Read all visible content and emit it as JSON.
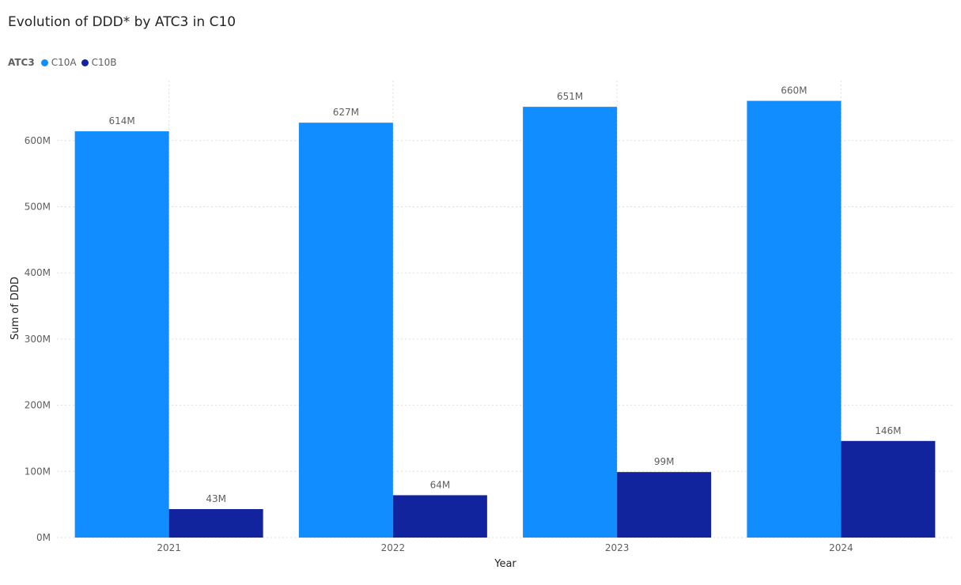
{
  "chart_data": {
    "type": "bar",
    "title": "Evolution of DDD* by ATC3 in C10",
    "legend_title": "ATC3",
    "legend_position": "top-left",
    "xlabel": "Year",
    "ylabel": "Sum of DDD",
    "categories": [
      "2021",
      "2022",
      "2023",
      "2024"
    ],
    "series": [
      {
        "name": "C10A",
        "color": "#118dff",
        "values": [
          614,
          627,
          651,
          660
        ],
        "labels": [
          "614M",
          "627M",
          "651M",
          "660M"
        ]
      },
      {
        "name": "C10B",
        "color": "#12239e",
        "values": [
          43,
          64,
          99,
          146
        ],
        "labels": [
          "43M",
          "64M",
          "99M",
          "146M"
        ]
      }
    ],
    "ylim": [
      0,
      685
    ],
    "yticks": [
      0,
      100,
      200,
      300,
      400,
      500,
      600
    ],
    "ytick_labels": [
      "0M",
      "100M",
      "200M",
      "300M",
      "400M",
      "500M",
      "600M"
    ],
    "grid": true
  }
}
